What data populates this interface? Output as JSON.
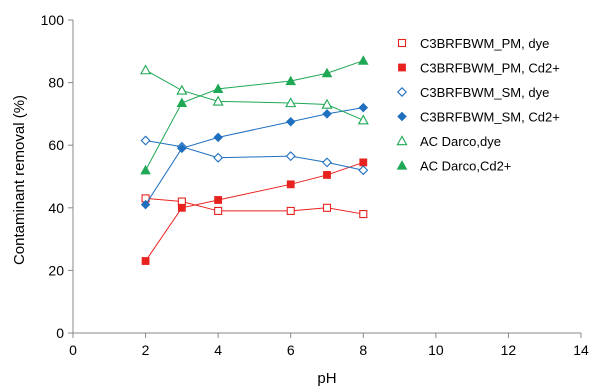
{
  "chart_data": {
    "type": "scatter",
    "title": "",
    "xlabel": "pH",
    "ylabel": "Contaminant removal (%)",
    "xlim": [
      0,
      14
    ],
    "ylim": [
      0,
      100
    ],
    "x_ticks": [
      "0",
      "2",
      "4",
      "6",
      "8",
      "10",
      "12",
      "14"
    ],
    "y_ticks": [
      "0",
      "20",
      "40",
      "60",
      "80",
      "100"
    ],
    "grid": false,
    "legend_position": "top-right",
    "x": [
      2,
      3,
      4,
      6,
      7,
      8
    ],
    "series": [
      {
        "name": "C3BRFBWM_PM, dye",
        "marker": "square-open",
        "color": "#e8221f",
        "values": [
          43,
          42,
          39,
          39,
          40,
          38
        ]
      },
      {
        "name": "C3BRFBWM_PM, Cd2+",
        "marker": "square-filled",
        "color": "#e8221f",
        "values": [
          23,
          40,
          42.5,
          47.5,
          50.5,
          54.5
        ]
      },
      {
        "name": "C3BRFBWM_SM, dye",
        "marker": "diamond-open",
        "color": "#1f6fbf",
        "values": [
          61.5,
          59.5,
          56,
          56.5,
          54.5,
          52
        ]
      },
      {
        "name": "C3BRFBWM_SM, Cd2+",
        "marker": "diamond-filled",
        "color": "#1f6fbf",
        "values": [
          41,
          59,
          62.5,
          67.5,
          70,
          72
        ]
      },
      {
        "name": "AC Darco,dye",
        "marker": "triangle-open",
        "color": "#1ea855",
        "values": [
          84,
          77.5,
          74,
          73.5,
          73,
          68
        ]
      },
      {
        "name": "AC Darco,Cd2+",
        "marker": "triangle-filled",
        "color": "#1ea855",
        "values": [
          52,
          73.5,
          78,
          80.5,
          83,
          87
        ]
      }
    ]
  }
}
